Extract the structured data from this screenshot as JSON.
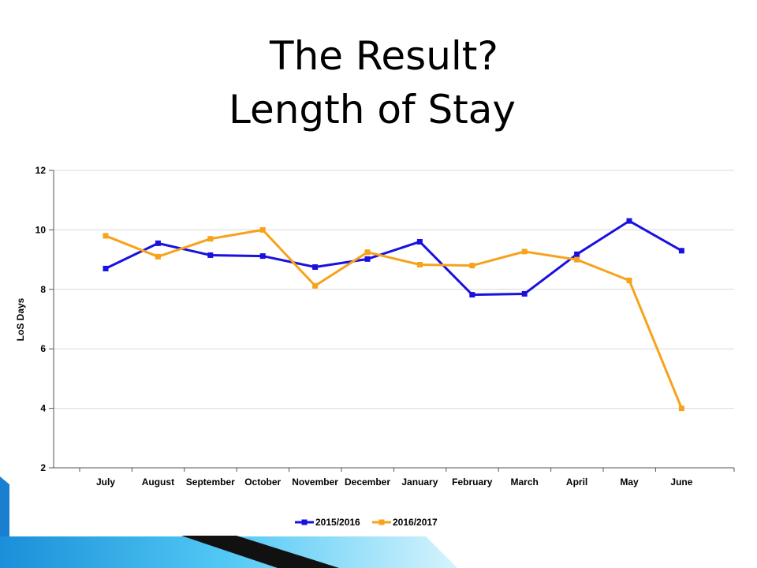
{
  "slide": {
    "title_line1": "The Result?",
    "title_line2": "Length of Stay"
  },
  "chart_data": {
    "type": "line",
    "categories": [
      "July",
      "August",
      "September",
      "October",
      "November",
      "December",
      "January",
      "February",
      "March",
      "April",
      "May",
      "June"
    ],
    "ylabel": "LoS Days",
    "ylim": [
      2,
      12
    ],
    "yticks": [
      2,
      4,
      6,
      8,
      10,
      12
    ],
    "grid": true,
    "legend": "bottom",
    "series": [
      {
        "name": "2015/2016",
        "color": "#1a10e0",
        "values": [
          8.7,
          9.55,
          9.15,
          9.12,
          8.75,
          9.02,
          9.6,
          7.82,
          7.85,
          9.18,
          10.3,
          9.3
        ]
      },
      {
        "name": "2016/2017",
        "color": "#f7a21b",
        "values": [
          9.8,
          9.1,
          9.7,
          10.0,
          8.12,
          9.25,
          8.83,
          8.8,
          9.27,
          9.0,
          8.3,
          4.0
        ]
      }
    ]
  },
  "colors": {
    "decor_light": "#3fc3f3",
    "decor_dark": "#0a4a8c",
    "decor_black": "#111111"
  }
}
